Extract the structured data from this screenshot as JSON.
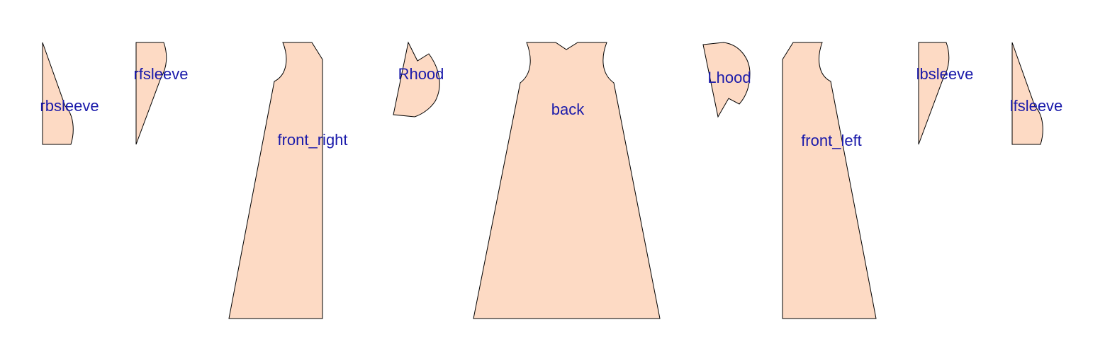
{
  "style": {
    "piece_fill": "#FDDAC4",
    "piece_stroke": "#000000",
    "label_color": "#1A1AAA",
    "background": "#FFFFFF"
  },
  "pieces": {
    "rbsleeve": {
      "label": "rbsleeve"
    },
    "rfsleeve": {
      "label": "rfsleeve"
    },
    "front_right": {
      "label": "front_right"
    },
    "rhood": {
      "label": "Rhood"
    },
    "back": {
      "label": "back"
    },
    "lhood": {
      "label": "Lhood"
    },
    "front_left": {
      "label": "front_left"
    },
    "lbsleeve": {
      "label": "lbsleeve"
    },
    "lfsleeve": {
      "label": "lfsleeve"
    }
  }
}
